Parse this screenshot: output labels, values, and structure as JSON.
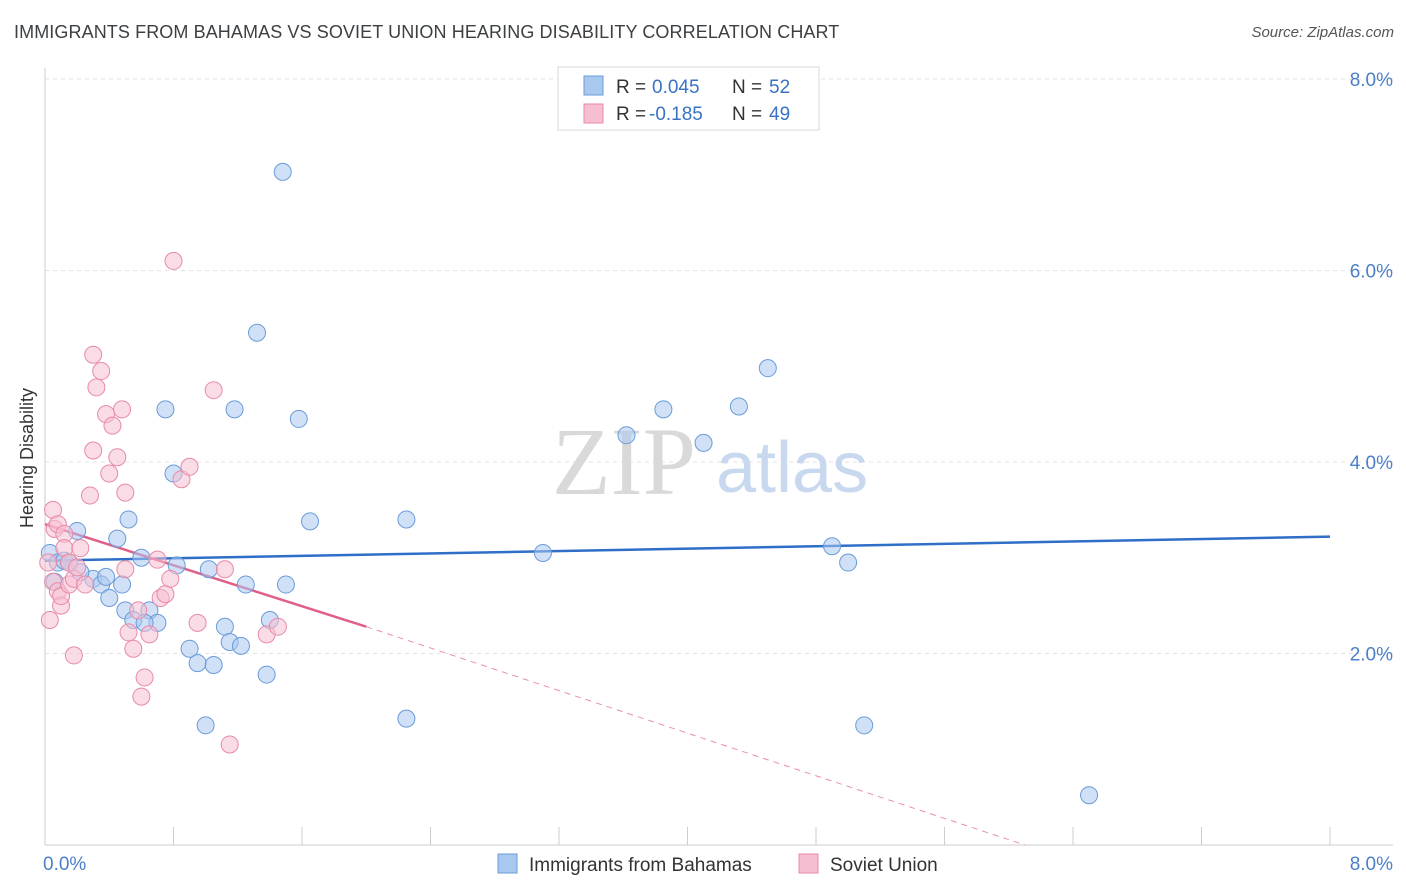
{
  "title": "IMMIGRANTS FROM BAHAMAS VS SOVIET UNION HEARING DISABILITY CORRELATION CHART",
  "source": "Source: ZipAtlas.com",
  "watermark": {
    "zip": "ZIP",
    "atlas": "atlas"
  },
  "colors": {
    "blue_fill": "#a9c8f0",
    "blue_stroke": "#6a9bd8",
    "blue_line": "#2f6fc8",
    "pink_fill": "#f6bfd1",
    "pink_stroke": "#e88aa8",
    "pink_line": "#e0608a",
    "grid": "#e3e3e3",
    "tick_text": "#4a7fc8"
  },
  "legend": {
    "rows": [
      {
        "r_label": "R =",
        "r_value": "0.045",
        "n_label": "N =",
        "n_value": "52",
        "series": "blue"
      },
      {
        "r_label": "R =",
        "r_value": "-0.185",
        "n_label": "N =",
        "n_value": "49",
        "series": "pink"
      }
    ]
  },
  "chart_data": {
    "type": "scatter",
    "title": "IMMIGRANTS FROM BAHAMAS VS SOVIET UNION HEARING DISABILITY CORRELATION CHART",
    "xlabel": "",
    "ylabel": "Hearing Disability",
    "xlim": [
      0,
      8
    ],
    "ylim": [
      0,
      8
    ],
    "x_tick_labels": [
      "0.0%",
      "8.0%"
    ],
    "y_ticks": [
      2,
      4,
      6,
      8
    ],
    "y_tick_labels": [
      "2.0%",
      "4.0%",
      "6.0%",
      "8.0%"
    ],
    "grid": true,
    "legend_placement": "top-center",
    "series": [
      {
        "name": "Immigrants from Bahamas",
        "color": "#a9c8f0",
        "trend": {
          "x": [
            0,
            8
          ],
          "y": [
            2.97,
            3.22
          ],
          "dashed_to": null
        },
        "points": [
          [
            0.03,
            3.05
          ],
          [
            0.08,
            2.95
          ],
          [
            0.06,
            2.75
          ],
          [
            0.12,
            2.97
          ],
          [
            0.2,
            3.28
          ],
          [
            0.3,
            2.78
          ],
          [
            0.35,
            2.72
          ],
          [
            0.38,
            2.8
          ],
          [
            0.4,
            2.58
          ],
          [
            0.45,
            3.2
          ],
          [
            0.5,
            2.45
          ],
          [
            0.48,
            2.72
          ],
          [
            0.52,
            3.4
          ],
          [
            0.6,
            3.0
          ],
          [
            0.65,
            2.45
          ],
          [
            0.7,
            2.32
          ],
          [
            0.75,
            4.55
          ],
          [
            0.8,
            3.88
          ],
          [
            0.82,
            2.92
          ],
          [
            0.9,
            2.05
          ],
          [
            0.95,
            1.9
          ],
          [
            1.0,
            1.25
          ],
          [
            1.02,
            2.88
          ],
          [
            1.05,
            1.88
          ],
          [
            1.12,
            2.28
          ],
          [
            1.15,
            2.12
          ],
          [
            1.18,
            4.55
          ],
          [
            1.22,
            2.08
          ],
          [
            1.25,
            2.72
          ],
          [
            1.32,
            5.35
          ],
          [
            1.38,
            1.78
          ],
          [
            1.4,
            2.35
          ],
          [
            1.48,
            7.03
          ],
          [
            1.5,
            2.72
          ],
          [
            1.58,
            4.45
          ],
          [
            1.65,
            3.38
          ],
          [
            2.25,
            1.32
          ],
          [
            2.25,
            3.4
          ],
          [
            3.1,
            3.05
          ],
          [
            3.62,
            4.28
          ],
          [
            3.85,
            4.55
          ],
          [
            4.1,
            4.2
          ],
          [
            4.32,
            4.58
          ],
          [
            4.5,
            4.98
          ],
          [
            4.9,
            3.12
          ],
          [
            5.0,
            2.95
          ],
          [
            5.1,
            1.25
          ],
          [
            6.5,
            0.52
          ],
          [
            0.15,
            2.95
          ],
          [
            0.55,
            2.35
          ],
          [
            0.62,
            2.32
          ],
          [
            0.22,
            2.85
          ]
        ]
      },
      {
        "name": "Soviet Union",
        "color": "#f6bfd1",
        "trend": {
          "x": [
            0,
            2.0
          ],
          "y": [
            3.35,
            2.28
          ],
          "dashed_to": [
            6.1,
            0.0
          ]
        },
        "points": [
          [
            0.02,
            2.95
          ],
          [
            0.03,
            2.35
          ],
          [
            0.05,
            2.75
          ],
          [
            0.05,
            3.5
          ],
          [
            0.06,
            3.3
          ],
          [
            0.08,
            3.35
          ],
          [
            0.08,
            2.65
          ],
          [
            0.1,
            2.5
          ],
          [
            0.1,
            2.6
          ],
          [
            0.12,
            3.25
          ],
          [
            0.12,
            3.1
          ],
          [
            0.15,
            2.95
          ],
          [
            0.15,
            2.72
          ],
          [
            0.18,
            2.78
          ],
          [
            0.2,
            2.9
          ],
          [
            0.22,
            3.1
          ],
          [
            0.25,
            2.72
          ],
          [
            0.28,
            3.65
          ],
          [
            0.3,
            4.12
          ],
          [
            0.3,
            5.12
          ],
          [
            0.32,
            4.78
          ],
          [
            0.35,
            4.95
          ],
          [
            0.38,
            4.5
          ],
          [
            0.4,
            3.88
          ],
          [
            0.42,
            4.38
          ],
          [
            0.45,
            4.05
          ],
          [
            0.48,
            4.55
          ],
          [
            0.5,
            3.68
          ],
          [
            0.5,
            2.88
          ],
          [
            0.52,
            2.22
          ],
          [
            0.55,
            2.05
          ],
          [
            0.58,
            2.45
          ],
          [
            0.6,
            1.55
          ],
          [
            0.62,
            1.75
          ],
          [
            0.65,
            2.2
          ],
          [
            0.7,
            2.98
          ],
          [
            0.72,
            2.58
          ],
          [
            0.75,
            2.62
          ],
          [
            0.78,
            2.78
          ],
          [
            0.8,
            6.1
          ],
          [
            0.85,
            3.82
          ],
          [
            0.9,
            3.95
          ],
          [
            0.95,
            2.32
          ],
          [
            1.05,
            4.75
          ],
          [
            1.12,
            2.88
          ],
          [
            1.15,
            1.05
          ],
          [
            1.38,
            2.2
          ],
          [
            1.45,
            2.28
          ],
          [
            0.18,
            1.98
          ]
        ]
      }
    ]
  }
}
